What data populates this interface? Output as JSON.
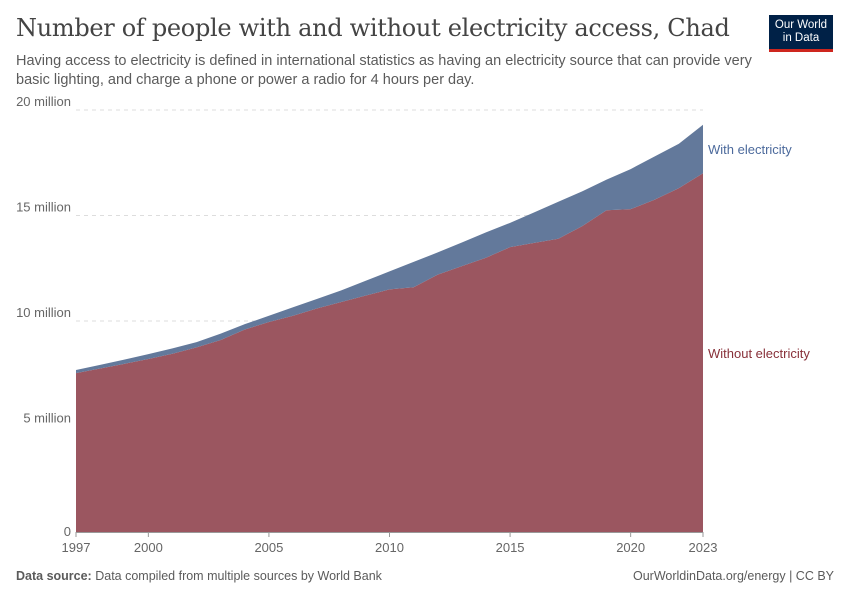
{
  "header": {
    "title": "Number of people with and without electricity access, Chad",
    "subtitle": "Having access to electricity is defined in international statistics as having an electricity source that can provide very basic lighting, and charge a phone or power a radio for 4 hours per day.",
    "logo_line1": "Our World",
    "logo_line2": "in Data"
  },
  "footer": {
    "source_label": "Data source:",
    "source_text": "Data compiled from multiple sources by World Bank",
    "credit": "OurWorldinData.org/energy | CC BY"
  },
  "colors": {
    "with": "#4c6a9c",
    "without": "#883039",
    "with_fill": "#63799b",
    "without_fill": "#9b5660"
  },
  "chart_data": {
    "type": "area",
    "stacked": true,
    "title": "Number of people with and without electricity access, Chad",
    "x": [
      1997,
      1998,
      1999,
      2000,
      2001,
      2002,
      2003,
      2004,
      2005,
      2006,
      2007,
      2008,
      2009,
      2010,
      2011,
      2012,
      2013,
      2014,
      2015,
      2016,
      2017,
      2018,
      2019,
      2020,
      2021,
      2022,
      2023
    ],
    "series": [
      {
        "name": "Without electricity",
        "values": [
          7.53,
          7.75,
          7.97,
          8.2,
          8.45,
          8.75,
          9.1,
          9.6,
          9.95,
          10.25,
          10.6,
          10.9,
          11.2,
          11.5,
          11.6,
          12.2,
          12.6,
          13.0,
          13.5,
          13.7,
          13.9,
          14.5,
          15.25,
          15.3,
          15.75,
          16.3,
          17.0
        ]
      },
      {
        "name": "With electricity",
        "values": [
          0.15,
          0.17,
          0.2,
          0.23,
          0.25,
          0.25,
          0.3,
          0.25,
          0.3,
          0.4,
          0.45,
          0.55,
          0.7,
          0.85,
          1.2,
          1.05,
          1.12,
          1.2,
          1.15,
          1.45,
          1.75,
          1.65,
          1.45,
          1.9,
          2.05,
          2.1,
          2.3
        ]
      }
    ],
    "unit": "million",
    "ylim": [
      0,
      20
    ],
    "yticks": [
      {
        "v": 0,
        "label": "0"
      },
      {
        "v": 5,
        "label": "5 million"
      },
      {
        "v": 10,
        "label": "10 million"
      },
      {
        "v": 15,
        "label": "15 million"
      },
      {
        "v": 20,
        "label": "20 million"
      }
    ],
    "xticks": [
      1997,
      2000,
      2005,
      2010,
      2015,
      2020,
      2023
    ],
    "grid": "horizontal dashed",
    "legend": "inline-right"
  }
}
